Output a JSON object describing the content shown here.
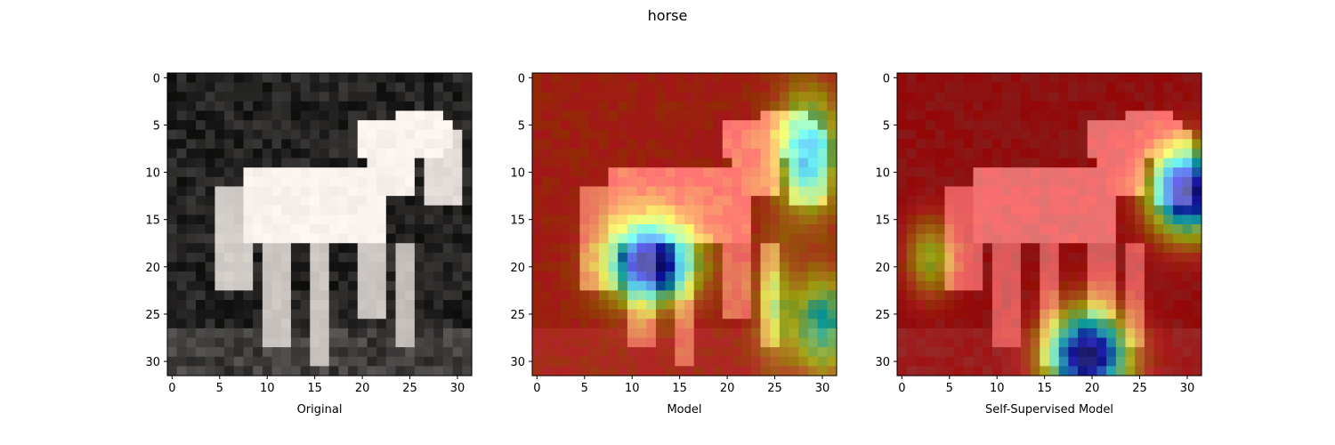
{
  "figure_title": "horse",
  "chart_data": [
    {
      "type": "heatmap",
      "xlabel": "Original",
      "xlim": [
        -0.5,
        31.5
      ],
      "ylim": [
        31.5,
        -0.5
      ],
      "xticks": [
        0,
        5,
        10,
        15,
        20,
        25,
        30
      ],
      "yticks": [
        0,
        5,
        10,
        15,
        20,
        25,
        30
      ],
      "image_size": [
        32,
        32
      ],
      "grid": false
    },
    {
      "type": "heatmap",
      "xlabel": "Model",
      "xlim": [
        -0.5,
        31.5
      ],
      "ylim": [
        31.5,
        -0.5
      ],
      "xticks": [
        0,
        5,
        10,
        15,
        20,
        25,
        30
      ],
      "yticks": [
        0,
        5,
        10,
        15,
        20,
        25,
        30
      ],
      "image_size": [
        32,
        32
      ],
      "colormap": "jet",
      "grid": false
    },
    {
      "type": "heatmap",
      "xlabel": "Self-Supervised Model",
      "xlim": [
        -0.5,
        31.5
      ],
      "ylim": [
        31.5,
        -0.5
      ],
      "xticks": [
        0,
        5,
        10,
        15,
        20,
        25,
        30
      ],
      "yticks": [
        0,
        5,
        10,
        15,
        20,
        25,
        30
      ],
      "image_size": [
        32,
        32
      ],
      "colormap": "jet",
      "grid": false
    }
  ]
}
